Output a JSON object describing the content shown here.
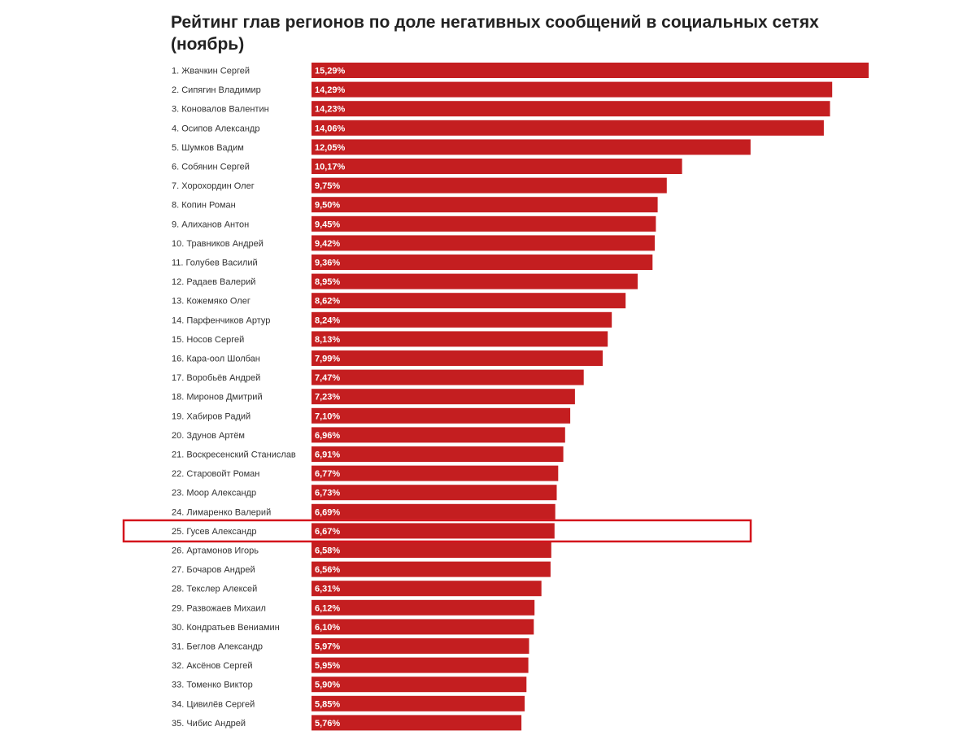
{
  "chart_data": {
    "type": "bar",
    "orientation": "horizontal",
    "title": "Рейтинг глав регионов по доле негативных сообщений в социальных сетях (ноябрь)",
    "categories": [
      "1. Жвачкин Сергей",
      "2. Сипягин Владимир",
      "3. Коновалов Валентин",
      "4. Осипов Александр",
      "5. Шумков Вадим",
      "6. Собянин Сергей",
      "7. Хорохордин Олег",
      "8. Копин Роман",
      "9. Алиханов Антон",
      "10. Травников Андрей",
      "11. Голубев Василий",
      "12. Радаев Валерий",
      "13. Кожемяко Олег",
      "14. Парфенчиков Артур",
      "15. Носов Сергей",
      "16. Кара-оол Шолбан",
      "17. Воробьёв Андрей",
      "18. Миронов Дмитрий",
      "19. Хабиров Радий",
      "20. Здунов Артём",
      "21. Воскресенский Станислав",
      "22. Старовойт Роман",
      "23. Моор Александр",
      "24. Лимаренко Валерий",
      "25. Гусев Александр",
      "26. Артамонов Игорь",
      "27. Бочаров Андрей",
      "28. Текслер Алексей",
      "29. Развожаев Михаил",
      "30. Кондратьев Вениамин",
      "31. Беглов Александр",
      "32. Аксёнов Сергей",
      "33. Томенко Виктор",
      "34. Цивилёв Сергей",
      "35. Чибис Андрей"
    ],
    "values": [
      15.29,
      14.29,
      14.23,
      14.06,
      12.05,
      10.17,
      9.75,
      9.5,
      9.45,
      9.42,
      9.36,
      8.95,
      8.62,
      8.24,
      8.13,
      7.99,
      7.47,
      7.23,
      7.1,
      6.96,
      6.91,
      6.77,
      6.73,
      6.69,
      6.67,
      6.58,
      6.56,
      6.31,
      6.12,
      6.1,
      5.97,
      5.95,
      5.9,
      5.85,
      5.76
    ],
    "value_labels": [
      "15,29%",
      "14,29%",
      "14,23%",
      "14,06%",
      "12,05%",
      "10,17%",
      "9,75%",
      "9,50%",
      "9,45%",
      "9,42%",
      "9,36%",
      "8,95%",
      "8,62%",
      "8,24%",
      "8,13%",
      "7,99%",
      "7,47%",
      "7,23%",
      "7,10%",
      "6,96%",
      "6,91%",
      "6,77%",
      "6,73%",
      "6,69%",
      "6,67%",
      "6,58%",
      "6,56%",
      "6,31%",
      "6,12%",
      "6,10%",
      "5,97%",
      "5,95%",
      "5,90%",
      "5,85%",
      "5,76%"
    ],
    "highlight_index": 24,
    "xlim": [
      0,
      15.29
    ],
    "grid": false,
    "legend": "none",
    "colors": {
      "bar": "#c41e20",
      "highlight_border": "#d4141c"
    }
  }
}
